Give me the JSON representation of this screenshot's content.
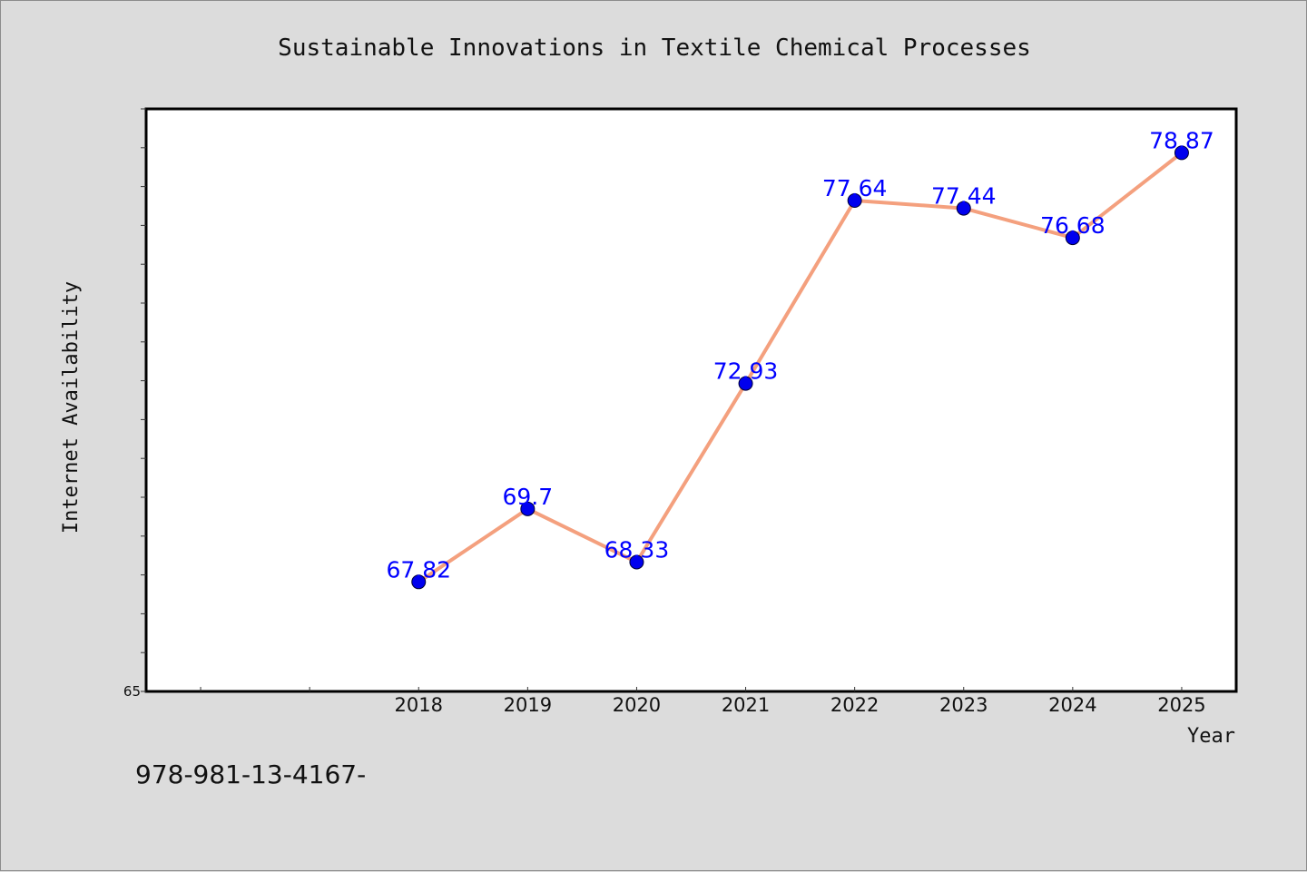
{
  "chart_data": {
    "type": "line",
    "title": "Sustainable Innovations in Textile Chemical Processes",
    "xlabel": "Year",
    "ylabel": "Internet Availability",
    "categories": [
      "2018",
      "2019",
      "2020",
      "2021",
      "2022",
      "2023",
      "2024",
      "2025"
    ],
    "x_axis_slots": 10,
    "first_category_slot": 2,
    "series": [
      {
        "values": [
          67.82,
          69.7,
          68.33,
          72.93,
          77.64,
          77.44,
          76.68,
          78.87
        ],
        "value_labels": [
          "67.82",
          "69.7",
          "68.33",
          "72.93",
          "77.64",
          "77.44",
          "76.68",
          "78.87"
        ]
      }
    ],
    "ylim": [
      65,
      80
    ],
    "y_tick_labels": [
      "65"
    ],
    "y_minor_tick_step": 1,
    "grid": false,
    "legend": "none",
    "colors": {
      "line": "#f4a07e",
      "marker": "#0000ee",
      "label": "#0000ff",
      "background": "#dcdcdc",
      "plot_background": "#ffffff"
    }
  },
  "footer_text": "978-981-13-4167-"
}
